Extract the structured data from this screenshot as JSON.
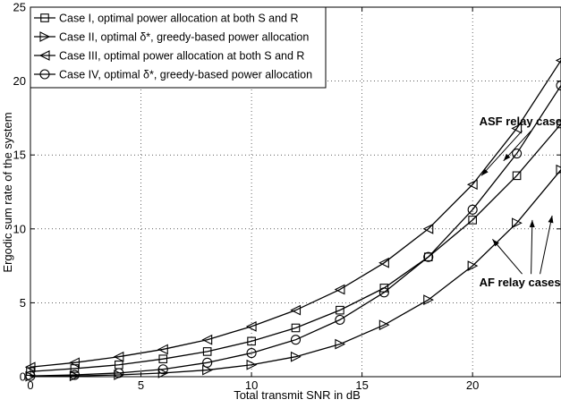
{
  "chart_data": {
    "type": "line",
    "title": "",
    "xlabel": "Total transmit SNR in dB",
    "ylabel": "Ergodic sum rate of the system",
    "xlim": [
      0,
      24
    ],
    "ylim": [
      0,
      25
    ],
    "xticks": [
      0,
      5,
      10,
      15,
      20
    ],
    "yticks": [
      0,
      5,
      10,
      15,
      20,
      25
    ],
    "grid": "dotted",
    "legend_position": "top-left",
    "series": [
      {
        "name": "Case I, optimal power allocation at both S and R",
        "marker": "square",
        "x": [
          0,
          2,
          4,
          6,
          8,
          10,
          12,
          14,
          16,
          18,
          20,
          22,
          24
        ],
        "y": [
          0.35,
          0.55,
          0.8,
          1.2,
          1.7,
          2.4,
          3.3,
          4.5,
          6.0,
          8.1,
          10.6,
          13.6,
          17.1
        ]
      },
      {
        "name": "Case II, optimal δ*, greedy-based power allocation",
        "marker": "triangle-right",
        "x": [
          0,
          2,
          4,
          6,
          8,
          10,
          12,
          14,
          16,
          18,
          20,
          22,
          24
        ],
        "y": [
          0.02,
          0.05,
          0.12,
          0.25,
          0.45,
          0.8,
          1.35,
          2.2,
          3.5,
          5.2,
          7.5,
          10.4,
          14.0
        ]
      },
      {
        "name": "Case III, optimal power allocation at both S and R",
        "marker": "triangle-left",
        "x": [
          0,
          2,
          4,
          6,
          8,
          10,
          12,
          14,
          16,
          18,
          20,
          22,
          24
        ],
        "y": [
          0.65,
          0.95,
          1.35,
          1.85,
          2.5,
          3.4,
          4.5,
          5.9,
          7.7,
          10.0,
          13.0,
          16.8,
          21.4
        ]
      },
      {
        "name": "Case IV, optimal δ*, greedy-based power allocation",
        "marker": "circle",
        "x": [
          0,
          2,
          4,
          6,
          8,
          10,
          12,
          14,
          16,
          18,
          20,
          22,
          24
        ],
        "y": [
          0.05,
          0.12,
          0.25,
          0.5,
          0.95,
          1.6,
          2.5,
          3.85,
          5.7,
          8.1,
          11.3,
          15.1,
          19.7
        ]
      }
    ],
    "annotations": [
      {
        "text": "ASF relay cases",
        "x": 20.3,
        "y": 17.0,
        "arrows_to": [
          [
            20.4,
            13.6
          ],
          [
            21.4,
            14.6
          ]
        ]
      },
      {
        "text": "AF relay cases",
        "x": 20.3,
        "y": 6.1,
        "arrows_to": [
          [
            20.9,
            9.3
          ],
          [
            22.7,
            10.6
          ],
          [
            23.6,
            10.9
          ]
        ]
      }
    ]
  }
}
